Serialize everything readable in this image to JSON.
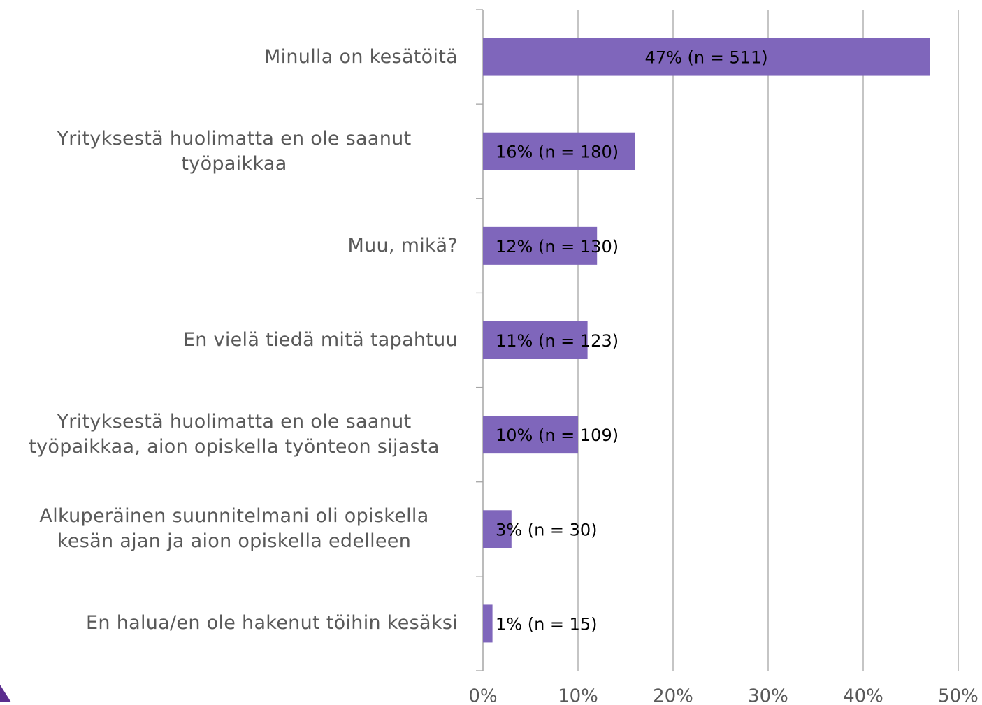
{
  "chart_data": {
    "type": "bar",
    "orientation": "horizontal",
    "categories": [
      "Minulla on kesätöitä",
      "Yrityksestä huolimatta en ole saanut työpaikkaa",
      "Muu, mikä?",
      "En vielä tiedä mitä tapahtuu",
      "Yrityksestä huolimatta en ole saanut työpaikkaa, aion opiskella työnteon sijasta",
      "Alkuperäinen suunnitelmani oli opiskella kesän ajan ja aion opiskella edelleen",
      "En halua/en ole hakenut töihin kesäksi"
    ],
    "values": [
      47,
      16,
      12,
      11,
      10,
      3,
      1
    ],
    "value_labels": [
      "47% (n = 511)",
      "16% (n = 180)",
      "12% (n = 130)",
      "11% (n = 123)",
      "10% (n = 109)",
      "3% (n = 30)",
      "1% (n = 15)"
    ],
    "color": "#7f66bb",
    "xlim": [
      0,
      50
    ],
    "xticks": [
      {
        "value": 0,
        "label": "0%"
      },
      {
        "value": 10,
        "label": "10%"
      },
      {
        "value": 20,
        "label": "20%"
      },
      {
        "value": 30,
        "label": "30%"
      },
      {
        "value": 40,
        "label": "40%"
      },
      {
        "value": 50,
        "label": "50%"
      }
    ],
    "grid": true
  }
}
